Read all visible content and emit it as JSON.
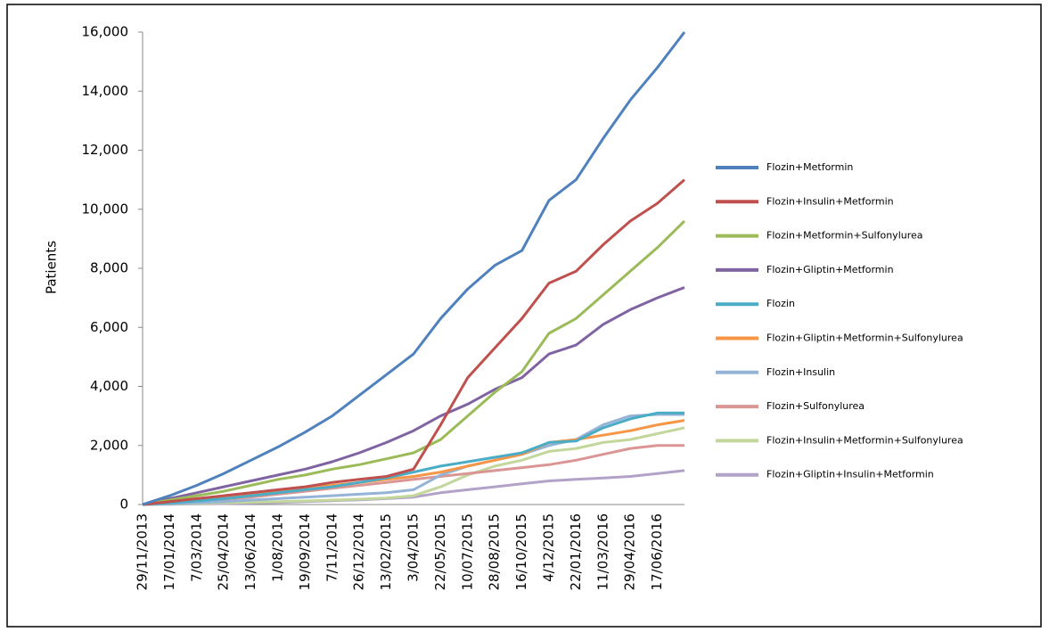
{
  "chart_data": {
    "type": "line",
    "y_label": "Patients",
    "categories": [
      "29/11/2013",
      "17/01/2014",
      "7/03/2014",
      "25/04/2014",
      "13/06/2014",
      "1/08/2014",
      "19/09/2014",
      "7/11/2014",
      "26/12/2014",
      "13/02/2015",
      "3/04/2015",
      "22/05/2015",
      "10/07/2015",
      "28/08/2015",
      "16/10/2015",
      "4/12/2015",
      "22/01/2016",
      "11/03/2016",
      "29/04/2016",
      "17/06/2016",
      null
    ],
    "ylim": [
      0,
      16000
    ],
    "yticks": [
      0,
      {
        "value": 2000,
        "label": "2,000"
      },
      {
        "value": 4000,
        "label": "4,000"
      },
      {
        "value": 6000,
        "label": "6,000"
      },
      {
        "value": 8000,
        "label": "8,000"
      },
      {
        "value": 10000,
        "label": "10,000"
      },
      {
        "value": 12000,
        "label": "12,000"
      },
      {
        "value": 14000,
        "label": "14,000"
      },
      {
        "value": 16000,
        "label": "16,000"
      }
    ],
    "legend": "right",
    "series": [
      {
        "name": "Flozin+Metformin",
        "color": "#4F81BD",
        "values": [
          0,
          300,
          650,
          1050,
          1500,
          1950,
          2450,
          3000,
          3700,
          4400,
          5100,
          6300,
          7300,
          8100,
          8600,
          10300,
          11000,
          12400,
          13700,
          14800,
          16000
        ]
      },
      {
        "name": "Flozin+Insulin+Metformin",
        "color": "#C0504D",
        "values": [
          0,
          100,
          200,
          300,
          400,
          500,
          600,
          750,
          850,
          950,
          1200,
          2700,
          4300,
          5300,
          6300,
          7500,
          7900,
          8800,
          9600,
          10200,
          11000
        ]
      },
      {
        "name": "Flozin+Metformin+Sulfonylurea",
        "color": "#9BBB59",
        "values": [
          0,
          150,
          300,
          450,
          650,
          850,
          1000,
          1200,
          1350,
          1550,
          1750,
          2200,
          3000,
          3800,
          4500,
          5800,
          6300,
          7100,
          7900,
          8700,
          9600
        ]
      },
      {
        "name": "Flozin+Gliptin+Metformin",
        "color": "#8064A2",
        "values": [
          0,
          200,
          400,
          600,
          800,
          1000,
          1200,
          1450,
          1750,
          2100,
          2500,
          3000,
          3400,
          3900,
          4300,
          5100,
          5400,
          6100,
          6600,
          7000,
          7350
        ]
      },
      {
        "name": "Flozin",
        "color": "#4BACC6",
        "values": [
          0,
          50,
          120,
          200,
          300,
          400,
          500,
          600,
          750,
          900,
          1100,
          1300,
          1450,
          1600,
          1750,
          2100,
          2150,
          2600,
          2900,
          3100,
          3100
        ]
      },
      {
        "name": "Flozin+Gliptin+Metformin+Sulfonylurea",
        "color": "#F79646",
        "values": [
          0,
          80,
          150,
          250,
          350,
          450,
          550,
          650,
          750,
          850,
          950,
          1100,
          1300,
          1500,
          1700,
          2100,
          2200,
          2350,
          2500,
          2700,
          2850
        ]
      },
      {
        "name": "Flozin+Insulin",
        "color": "#95B3D7",
        "values": [
          0,
          30,
          60,
          100,
          150,
          200,
          250,
          300,
          350,
          400,
          500,
          1000,
          1300,
          1500,
          1700,
          2000,
          2200,
          2700,
          3000,
          3050,
          3050
        ]
      },
      {
        "name": "Flozin+Sulfonylurea",
        "color": "#D99694",
        "values": [
          0,
          40,
          100,
          180,
          250,
          350,
          450,
          550,
          650,
          750,
          850,
          950,
          1050,
          1150,
          1250,
          1350,
          1500,
          1700,
          1900,
          2000,
          2000
        ]
      },
      {
        "name": "Flozin+Insulin+Metformin+Sulfonylurea",
        "color": "#C3D69B",
        "values": [
          0,
          20,
          40,
          60,
          80,
          100,
          120,
          150,
          180,
          220,
          300,
          600,
          1000,
          1300,
          1500,
          1800,
          1900,
          2100,
          2200,
          2400,
          2600
        ]
      },
      {
        "name": "Flozin+Gliptin+Insulin+Metformin",
        "color": "#B3A2C7",
        "values": [
          0,
          10,
          20,
          30,
          50,
          70,
          100,
          130,
          160,
          200,
          250,
          400,
          500,
          600,
          700,
          800,
          850,
          900,
          950,
          1050,
          1150
        ]
      }
    ]
  }
}
